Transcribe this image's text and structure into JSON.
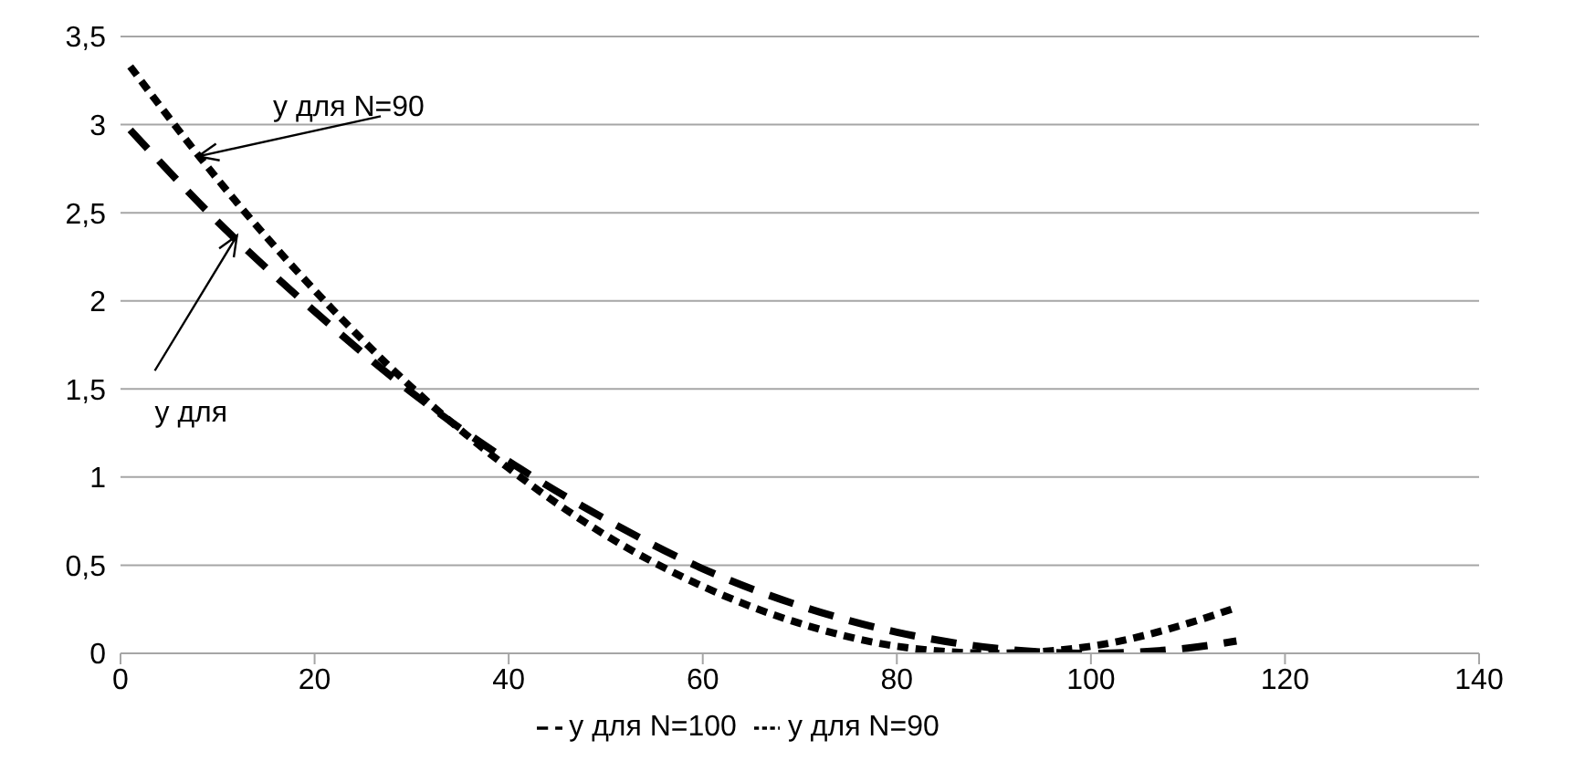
{
  "chart_data": {
    "type": "line",
    "x": [
      1,
      10,
      20,
      30,
      40,
      50,
      60,
      70,
      80,
      90,
      100,
      110,
      115
    ],
    "series": [
      {
        "name": "y для N=90",
        "color": "#000000",
        "line_style": "dashed",
        "values": [
          3.33,
          2.69,
          2.06,
          1.51,
          1.05,
          0.67,
          0.38,
          0.17,
          0.04,
          0,
          0.04,
          0.17,
          0.26
        ]
      },
      {
        "name": "y для N=100",
        "color": "#000000",
        "line_style": "dashed",
        "values": [
          2.97,
          2.45,
          1.94,
          1.48,
          1.09,
          0.76,
          0.48,
          0.27,
          0.12,
          0.03,
          0,
          0.03,
          0.07
        ]
      }
    ],
    "xlim": [
      0,
      140
    ],
    "xticks": [
      0,
      20,
      40,
      60,
      80,
      100,
      120,
      140
    ],
    "ylim": [
      0,
      3.5
    ],
    "yticks": [
      0,
      {
        "value": 0.5,
        "label": "0,5"
      },
      1,
      {
        "value": 1.5,
        "label": "1,5"
      },
      2,
      {
        "value": 2.5,
        "label": "2,5"
      },
      3,
      {
        "value": 3.5,
        "label": "3,5"
      }
    ],
    "grid": "y",
    "legend": "bottom",
    "marker": "none",
    "annotations": [
      {
        "text": "y для N=90",
        "x": 8,
        "y": 2.82
      },
      {
        "text": "y для",
        "x": 12,
        "y": 2.37
      }
    ]
  }
}
